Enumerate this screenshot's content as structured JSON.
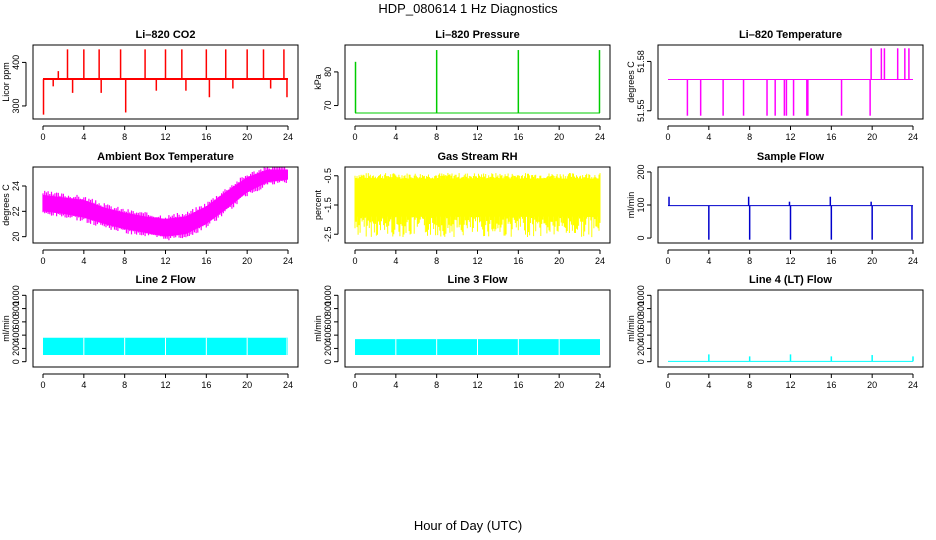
{
  "figure": {
    "title": "HDP_080614  1 Hz Diagnostics",
    "xlabel": "Hour of Day (UTC)"
  },
  "chart_data": [
    {
      "id": "co2",
      "type": "line",
      "title": "Li–820 CO2",
      "ylabel": "Licor ppm",
      "color": "#ff0000",
      "xlim": [
        0,
        24
      ],
      "ylim": [
        270,
        440
      ],
      "xticks": [
        0,
        4,
        8,
        12,
        16,
        20,
        24
      ],
      "yticks": [
        300,
        400
      ],
      "series": [
        {
          "baseline": 362,
          "spikes": [
            {
              "x": 0.05,
              "y": 280
            },
            {
              "x": 1.0,
              "y": 345
            },
            {
              "x": 1.5,
              "y": 380
            },
            {
              "x": 2.4,
              "y": 430
            },
            {
              "x": 2.9,
              "y": 330
            },
            {
              "x": 4.0,
              "y": 430
            },
            {
              "x": 5.5,
              "y": 430
            },
            {
              "x": 5.7,
              "y": 330
            },
            {
              "x": 7.6,
              "y": 430
            },
            {
              "x": 8.1,
              "y": 285
            },
            {
              "x": 10.0,
              "y": 430
            },
            {
              "x": 11.1,
              "y": 335
            },
            {
              "x": 12.0,
              "y": 430
            },
            {
              "x": 13.6,
              "y": 430
            },
            {
              "x": 14.0,
              "y": 335
            },
            {
              "x": 16.0,
              "y": 430
            },
            {
              "x": 16.3,
              "y": 320
            },
            {
              "x": 17.9,
              "y": 430
            },
            {
              "x": 18.6,
              "y": 340
            },
            {
              "x": 20.0,
              "y": 430
            },
            {
              "x": 21.6,
              "y": 430
            },
            {
              "x": 22.3,
              "y": 340
            },
            {
              "x": 23.6,
              "y": 430
            },
            {
              "x": 23.9,
              "y": 320
            }
          ]
        }
      ]
    },
    {
      "id": "pressure",
      "type": "line",
      "title": "Li–820 Pressure",
      "ylabel": "kPa",
      "color": "#00cc00",
      "xlim": [
        0,
        24
      ],
      "ylim": [
        66,
        88
      ],
      "xticks": [
        0,
        4,
        8,
        12,
        16,
        20,
        24
      ],
      "yticks": [
        70,
        80
      ],
      "series": [
        {
          "baseline": 67.8,
          "spikes": [
            {
              "x": 0.05,
              "y": 83
            },
            {
              "x": 8.0,
              "y": 86.5
            },
            {
              "x": 16.0,
              "y": 86.5
            },
            {
              "x": 23.95,
              "y": 86.5
            }
          ]
        }
      ]
    },
    {
      "id": "licor-temp",
      "type": "line",
      "title": "Li–820 Temperature",
      "ylabel": "degrees C",
      "color": "#ff00ff",
      "xlim": [
        0,
        24
      ],
      "ylim": [
        51.545,
        51.59
      ],
      "xticks": [
        0,
        4,
        8,
        12,
        16,
        20,
        24
      ],
      "yticks": [
        51.55,
        51.58
      ],
      "series": [
        {
          "baseline": 51.569,
          "spikes": [
            {
              "x": 1.9,
              "y": 51.547
            },
            {
              "x": 3.2,
              "y": 51.547
            },
            {
              "x": 5.4,
              "y": 51.547
            },
            {
              "x": 7.4,
              "y": 51.547
            },
            {
              "x": 9.7,
              "y": 51.547
            },
            {
              "x": 10.5,
              "y": 51.547
            },
            {
              "x": 11.4,
              "y": 51.547
            },
            {
              "x": 11.6,
              "y": 51.547
            },
            {
              "x": 12.3,
              "y": 51.547
            },
            {
              "x": 13.6,
              "y": 51.547
            },
            {
              "x": 13.7,
              "y": 51.547
            },
            {
              "x": 17.0,
              "y": 51.547
            },
            {
              "x": 19.8,
              "y": 51.547
            },
            {
              "x": 19.9,
              "y": 51.588
            },
            {
              "x": 20.9,
              "y": 51.588
            },
            {
              "x": 21.2,
              "y": 51.588
            },
            {
              "x": 22.5,
              "y": 51.588
            },
            {
              "x": 23.2,
              "y": 51.588
            },
            {
              "x": 23.6,
              "y": 51.588
            }
          ]
        }
      ]
    },
    {
      "id": "box-temp",
      "type": "area",
      "title": "Ambient Box Temperature",
      "ylabel": "degrees C",
      "color": "#ff00ff",
      "xlim": [
        0,
        24
      ],
      "ylim": [
        19.5,
        25.5
      ],
      "xticks": [
        0,
        4,
        8,
        12,
        16,
        20,
        24
      ],
      "yticks": [
        20,
        22,
        24
      ],
      "series": [
        {
          "name": "",
          "x": [
            0,
            2,
            4,
            6,
            8,
            10,
            12,
            14,
            16,
            18,
            20,
            22,
            24
          ],
          "low": [
            22.0,
            21.8,
            21.5,
            21.0,
            20.6,
            20.3,
            20.0,
            20.2,
            21.0,
            22.2,
            23.5,
            24.3,
            24.5
          ],
          "high": [
            23.3,
            23.1,
            22.9,
            22.3,
            21.9,
            21.6,
            21.4,
            21.6,
            22.4,
            23.6,
            24.7,
            25.3,
            25.3
          ]
        }
      ]
    },
    {
      "id": "rh",
      "type": "area",
      "title": "Gas Stream RH",
      "ylabel": "percent",
      "color": "#ffff00",
      "xlim": [
        0,
        24
      ],
      "ylim": [
        -2.8,
        -0.2
      ],
      "xticks": [
        0,
        4,
        8,
        12,
        16,
        20,
        24
      ],
      "yticks": [
        -2.5,
        -1.5,
        -0.5
      ],
      "series": [
        {
          "name": "",
          "x": [
            0,
            24
          ],
          "low": [
            -1.9,
            -1.9
          ],
          "high": [
            -0.6,
            -0.6
          ],
          "min": -2.6,
          "max": -0.4
        }
      ]
    },
    {
      "id": "sample-flow",
      "type": "line",
      "title": "Sample Flow",
      "ylabel": "ml/min",
      "color": "#0000cc",
      "xlim": [
        0,
        24
      ],
      "ylim": [
        -15,
        215
      ],
      "xticks": [
        0,
        4,
        8,
        12,
        16,
        20,
        24
      ],
      "yticks": [
        0,
        100,
        200
      ],
      "series": [
        {
          "baseline": 98,
          "spikes": [
            {
              "x": 0.1,
              "y": 125
            },
            {
              "x": 4.0,
              "y": -5
            },
            {
              "x": 7.9,
              "y": 125
            },
            {
              "x": 8.0,
              "y": -5
            },
            {
              "x": 11.9,
              "y": 110
            },
            {
              "x": 12.0,
              "y": -5
            },
            {
              "x": 15.9,
              "y": 125
            },
            {
              "x": 16.0,
              "y": -5
            },
            {
              "x": 19.9,
              "y": 110
            },
            {
              "x": 20.0,
              "y": -5
            },
            {
              "x": 23.9,
              "y": -5
            }
          ]
        }
      ]
    },
    {
      "id": "line2",
      "type": "area",
      "title": "Line 2 Flow",
      "ylabel": "ml/min",
      "color": "#00ffff",
      "xlim": [
        0,
        24
      ],
      "ylim": [
        -80,
        1080
      ],
      "xticks": [
        0,
        4,
        8,
        12,
        16,
        20,
        24
      ],
      "yticks": [
        0,
        200,
        400,
        600,
        800,
        1000
      ],
      "series": [
        {
          "name": "",
          "x": [
            0,
            24
          ],
          "low": [
            100,
            100
          ],
          "high": [
            360,
            360
          ],
          "gaps": [
            4,
            8,
            12,
            16,
            20,
            23.9
          ]
        }
      ]
    },
    {
      "id": "line3",
      "type": "area",
      "title": "Line 3 Flow",
      "ylabel": "ml/min",
      "color": "#00ffff",
      "xlim": [
        0,
        24
      ],
      "ylim": [
        -80,
        1080
      ],
      "xticks": [
        0,
        4,
        8,
        12,
        16,
        20,
        24
      ],
      "yticks": [
        0,
        200,
        400,
        600,
        800,
        1000
      ],
      "series": [
        {
          "name": "",
          "x": [
            0,
            24
          ],
          "low": [
            100,
            100
          ],
          "high": [
            340,
            340
          ],
          "gaps": [
            4,
            8,
            12,
            16,
            20
          ]
        }
      ]
    },
    {
      "id": "line4",
      "type": "line",
      "title": "Line 4 (LT) Flow",
      "ylabel": "ml/min",
      "color": "#00ffff",
      "xlim": [
        0,
        24
      ],
      "ylim": [
        -80,
        1080
      ],
      "xticks": [
        0,
        4,
        8,
        12,
        16,
        20,
        24
      ],
      "yticks": [
        0,
        200,
        400,
        600,
        800,
        1000
      ],
      "series": [
        {
          "baseline": 5,
          "spikes": [
            {
              "x": 4.0,
              "y": 110
            },
            {
              "x": 8.0,
              "y": 80
            },
            {
              "x": 12.0,
              "y": 110
            },
            {
              "x": 16.0,
              "y": 80
            },
            {
              "x": 20.0,
              "y": 100
            },
            {
              "x": 24.0,
              "y": 80
            }
          ]
        }
      ]
    }
  ]
}
